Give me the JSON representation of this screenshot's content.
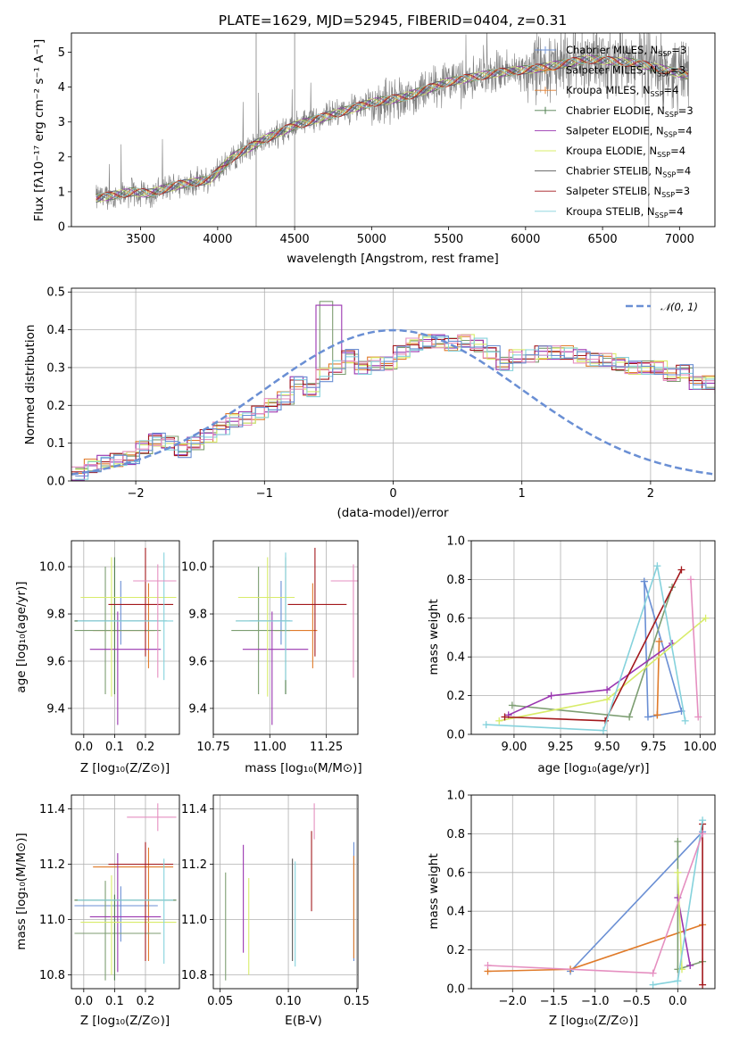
{
  "colors": [
    "#6a8fd4",
    "#e07b2a",
    "#4e7d4c",
    "#7d9e72",
    "#9a36b0",
    "#d8ec6a",
    "#5a5a5a",
    "#a3181c",
    "#85d2dc",
    "#e58fc0"
  ],
  "chart_data": [
    {
      "id": "spectrum",
      "type": "line",
      "title": "PLATE=1629, MJD=52945, FIBERID=0404, z=0.31",
      "xlabel": "wavelength [Angstrom, rest frame]",
      "ylabel": "Flux [fλ10⁻¹⁷ erg cm⁻² s⁻¹ A⁻¹]",
      "xlim": [
        3050,
        7230
      ],
      "ylim": [
        0,
        5.55
      ],
      "xticks": [
        3500,
        4000,
        4500,
        5000,
        5500,
        6000,
        6500,
        7000
      ],
      "yticks": [
        0,
        1,
        2,
        3,
        4,
        5
      ],
      "grid": false,
      "legend_position": "right",
      "continuum_nodes": [
        [
          3220,
          0.82
        ],
        [
          3450,
          1.0
        ],
        [
          3550,
          0.95
        ],
        [
          3750,
          1.2
        ],
        [
          3950,
          1.35
        ],
        [
          4100,
          2.0
        ],
        [
          4300,
          2.5
        ],
        [
          4500,
          2.9
        ],
        [
          4700,
          3.15
        ],
        [
          5000,
          3.55
        ],
        [
          5200,
          3.7
        ],
        [
          5500,
          4.15
        ],
        [
          5800,
          4.4
        ],
        [
          6100,
          4.55
        ],
        [
          6400,
          4.8
        ],
        [
          6700,
          4.7
        ],
        [
          7050,
          4.35
        ]
      ],
      "series_labels": [
        "Chabrier MILES, N",
        "Salpeter MILES, N",
        "Kroupa MILES, N",
        "Chabrier ELODIE, N",
        "Salpeter ELODIE, N",
        "Kroupa ELODIE, N",
        "Chabrier STELIB, N",
        "Salpeter STELIB, N",
        "Kroupa STELIB, N"
      ],
      "series_sub": "SSP",
      "series_nssp": [
        "=3",
        "=3",
        "=4",
        "=3",
        "=4",
        "=4",
        "=4",
        "=3",
        "=4"
      ],
      "series_color_index": [
        0,
        1,
        1,
        2,
        4,
        5,
        6,
        7,
        8
      ],
      "series_marker": [
        "|",
        "|",
        "|",
        "+",
        "",
        "",
        "",
        "",
        ""
      ]
    },
    {
      "id": "residual-hist",
      "type": "histogram",
      "xlabel": "(data-model)/error",
      "ylabel": "Normed distribution",
      "xlim": [
        -2.5,
        2.5
      ],
      "ylim": [
        0,
        0.51
      ],
      "xticks": [
        -2,
        -1,
        0,
        1,
        2
      ],
      "yticks": [
        0.0,
        0.1,
        0.2,
        0.3,
        0.4,
        0.5
      ],
      "grid": true,
      "legend_label": "𝒩(0, 1)",
      "legend_position": "top-right",
      "bin_width": 0.1,
      "base_profile": [
        0.02,
        0.04,
        0.05,
        0.055,
        0.06,
        0.09,
        0.11,
        0.1,
        0.08,
        0.1,
        0.12,
        0.14,
        0.16,
        0.165,
        0.18,
        0.2,
        0.22,
        0.26,
        0.24,
        0.28,
        0.3,
        0.33,
        0.3,
        0.31,
        0.31,
        0.34,
        0.36,
        0.37,
        0.37,
        0.36,
        0.37,
        0.36,
        0.34,
        0.31,
        0.33,
        0.33,
        0.34,
        0.34,
        0.34,
        0.33,
        0.32,
        0.32,
        0.31,
        0.3,
        0.3,
        0.3,
        0.28,
        0.29,
        0.26,
        0.26,
        0.25,
        0.23,
        0.2,
        0.2,
        0.19,
        0.17,
        0.17,
        0.155,
        0.15,
        0.14,
        0.13,
        0.12,
        0.11,
        0.09,
        0.08,
        0.07,
        0.06,
        0.05,
        0.045,
        0.04,
        0.035,
        0.04,
        0.03,
        0.035
      ],
      "spike": {
        "x": -0.55,
        "value": 0.485
      }
    },
    {
      "id": "age-vs-Z",
      "type": "errorbar",
      "xlabel": "Z [log₁₀(Z/Z⊙)]",
      "ylabel": "age  [log₁₀(age/yr)]",
      "xlim": [
        -0.04,
        0.31
      ],
      "ylim": [
        9.29,
        10.11
      ],
      "xticks": [
        0.0,
        0.1,
        0.2
      ],
      "yticks": [
        9.4,
        9.6,
        9.8,
        10.0
      ],
      "grid": true,
      "points": [
        {
          "x": 0.12,
          "y": 9.77,
          "xerr": [
            0.15,
            0.12
          ],
          "yerr": [
            0.1,
            0.17
          ],
          "color": 0
        },
        {
          "x": 0.21,
          "y": 9.73,
          "xerr": [
            0.18,
            0.02
          ],
          "yerr": [
            0.16,
            0.2
          ],
          "color": 1
        },
        {
          "x": 0.07,
          "y": 9.73,
          "xerr": [
            0.1,
            0.18
          ],
          "yerr": [
            0.27,
            0.27
          ],
          "color": 3
        },
        {
          "x": 0.1,
          "y": 9.77,
          "xerr": [
            0.13,
            0.17
          ],
          "yerr": [
            0.31,
            0.27
          ],
          "color": 2
        },
        {
          "x": 0.11,
          "y": 9.65,
          "xerr": [
            0.09,
            0.14
          ],
          "yerr": [
            0.32,
            0.16
          ],
          "color": 4
        },
        {
          "x": 0.09,
          "y": 9.87,
          "xerr": [
            0.1,
            0.21
          ],
          "yerr": [
            0.42,
            0.17
          ],
          "color": 5
        },
        {
          "x": 0.2,
          "y": 9.84,
          "xerr": [
            0.12,
            0.09
          ],
          "yerr": [
            0.22,
            0.24
          ],
          "color": 7
        },
        {
          "x": 0.26,
          "y": 9.77,
          "xerr": [
            0.28,
            0.03
          ],
          "yerr": [
            0.25,
            0.29
          ],
          "color": 8
        },
        {
          "x": 0.24,
          "y": 9.94,
          "xerr": [
            0.08,
            0.06
          ],
          "yerr": [
            0.41,
            0.07
          ],
          "color": 9
        }
      ]
    },
    {
      "id": "age-vs-mass",
      "type": "errorbar",
      "xlabel": "mass [log₁₀(M/M⊙)]",
      "ylabel": "",
      "xlim": [
        10.75,
        11.39
      ],
      "ylim": [
        9.29,
        10.11
      ],
      "xticks": [
        10.75,
        11.0,
        11.25
      ],
      "yticks": [
        9.4,
        9.6,
        9.8,
        10.0
      ],
      "grid": true,
      "points": [
        {
          "x": 11.05,
          "y": 9.77,
          "xerr": [
            0.14,
            0.05
          ],
          "yerr": [
            0.1,
            0.17
          ],
          "color": 0
        },
        {
          "x": 11.19,
          "y": 9.73,
          "xerr": [
            0.17,
            0.02
          ],
          "yerr": [
            0.16,
            0.2
          ],
          "color": 1
        },
        {
          "x": 10.95,
          "y": 9.73,
          "xerr": [
            0.12,
            0.14
          ],
          "yerr": [
            0.27,
            0.27
          ],
          "color": 3
        },
        {
          "x": 11.07,
          "y": 9.77,
          "xerr": [
            0.22,
            0.02
          ],
          "yerr": [
            0.31,
            0.27
          ],
          "color": 2
        },
        {
          "x": 11.01,
          "y": 9.65,
          "xerr": [
            0.13,
            0.16
          ],
          "yerr": [
            0.32,
            0.16
          ],
          "color": 4
        },
        {
          "x": 10.99,
          "y": 9.87,
          "xerr": [
            0.13,
            0.12
          ],
          "yerr": [
            0.42,
            0.17
          ],
          "color": 5
        },
        {
          "x": 11.2,
          "y": 9.84,
          "xerr": [
            0.12,
            0.14
          ],
          "yerr": [
            0.22,
            0.24
          ],
          "color": 7
        },
        {
          "x": 11.07,
          "y": 9.77,
          "xerr": [
            0.22,
            0.03
          ],
          "yerr": [
            0.25,
            0.29
          ],
          "color": 8
        },
        {
          "x": 11.37,
          "y": 9.94,
          "xerr": [
            0.1,
            0.06
          ],
          "yerr": [
            0.41,
            0.07
          ],
          "color": 9
        }
      ]
    },
    {
      "id": "mass-weight-vs-age",
      "type": "line",
      "xlabel": "age  [log₁₀(age/yr)]",
      "ylabel": "mass weight",
      "xlim": [
        8.77,
        10.08
      ],
      "ylim": [
        0,
        1.0
      ],
      "xticks": [
        9.0,
        9.25,
        9.5,
        9.75,
        10.0
      ],
      "yticks": [
        0.0,
        0.2,
        0.4,
        0.6,
        0.8,
        1.0
      ],
      "grid": true,
      "series": [
        {
          "color": 0,
          "points": [
            [
              9.7,
              0.79
            ],
            [
              9.72,
              0.09
            ],
            [
              9.9,
              0.12
            ],
            [
              9.7,
              0.79
            ]
          ]
        },
        {
          "color": 1,
          "points": [
            [
              9.77,
              0.1
            ],
            [
              9.78,
              0.48
            ],
            [
              9.77,
              0.1
            ]
          ]
        },
        {
          "color": 3,
          "points": [
            [
              8.99,
              0.15
            ],
            [
              9.62,
              0.09
            ],
            [
              9.85,
              0.76
            ]
          ]
        },
        {
          "color": 4,
          "points": [
            [
              8.97,
              0.1
            ],
            [
              9.2,
              0.2
            ],
            [
              9.5,
              0.23
            ],
            [
              9.85,
              0.47
            ]
          ]
        },
        {
          "color": 5,
          "points": [
            [
              8.92,
              0.07
            ],
            [
              9.5,
              0.18
            ],
            [
              10.03,
              0.6
            ]
          ]
        },
        {
          "color": 7,
          "points": [
            [
              8.95,
              0.09
            ],
            [
              9.49,
              0.07
            ],
            [
              9.9,
              0.85
            ]
          ]
        },
        {
          "color": 8,
          "points": [
            [
              8.85,
              0.05
            ],
            [
              9.48,
              0.02
            ],
            [
              9.77,
              0.87
            ],
            [
              9.92,
              0.07
            ]
          ]
        },
        {
          "color": 9,
          "points": [
            [
              9.95,
              0.8
            ],
            [
              9.99,
              0.09
            ]
          ]
        }
      ]
    },
    {
      "id": "mass-vs-Z",
      "type": "errorbar",
      "xlabel": "Z [log₁₀(Z/Z⊙)]",
      "ylabel": "mass [log₁₀(M/M⊙)]",
      "xlim": [
        -0.04,
        0.31
      ],
      "ylim": [
        10.75,
        11.45
      ],
      "xticks": [
        0.0,
        0.1,
        0.2
      ],
      "yticks": [
        10.8,
        11.0,
        11.2,
        11.4
      ],
      "grid": true,
      "points": [
        {
          "x": 0.12,
          "y": 11.05,
          "xerr": [
            0.15,
            0.12
          ],
          "yerr": [
            0.13,
            0.07
          ],
          "color": 0
        },
        {
          "x": 0.21,
          "y": 11.19,
          "xerr": [
            0.18,
            0.08
          ],
          "yerr": [
            0.34,
            0.07
          ],
          "color": 1
        },
        {
          "x": 0.07,
          "y": 10.95,
          "xerr": [
            0.1,
            0.18
          ],
          "yerr": [
            0.17,
            0.19
          ],
          "color": 3
        },
        {
          "x": 0.1,
          "y": 11.07,
          "xerr": [
            0.13,
            0.2
          ],
          "yerr": [
            0.29,
            0.02
          ],
          "color": 2
        },
        {
          "x": 0.11,
          "y": 11.01,
          "xerr": [
            0.09,
            0.14
          ],
          "yerr": [
            0.2,
            0.23
          ],
          "color": 4
        },
        {
          "x": 0.09,
          "y": 10.99,
          "xerr": [
            0.1,
            0.21
          ],
          "yerr": [
            0.19,
            0.17
          ],
          "color": 5
        },
        {
          "x": 0.2,
          "y": 11.2,
          "xerr": [
            0.12,
            0.09
          ],
          "yerr": [
            0.35,
            0.08
          ],
          "color": 7
        },
        {
          "x": 0.26,
          "y": 11.07,
          "xerr": [
            0.28,
            0.03
          ],
          "yerr": [
            0.23,
            0.15
          ],
          "color": 8
        },
        {
          "x": 0.24,
          "y": 11.37,
          "xerr": [
            0.1,
            0.06
          ],
          "yerr": [
            0.05,
            0.05
          ],
          "color": 9
        }
      ]
    },
    {
      "id": "mass-vs-ebv",
      "type": "errorbar",
      "xlabel": "E(B-V)",
      "ylabel": "",
      "xlim": [
        0.045,
        0.151
      ],
      "ylim": [
        10.75,
        11.45
      ],
      "xticks": [
        0.05,
        0.1,
        0.15
      ],
      "yticks": [
        10.8,
        11.0,
        11.2,
        11.4
      ],
      "grid": true,
      "points": [
        {
          "x": 0.148,
          "y": 11.05,
          "xerr": [
            0.0,
            0.0
          ],
          "yerr": [
            0.2,
            0.23
          ],
          "color": 0
        },
        {
          "x": 0.148,
          "y": 11.0,
          "xerr": [
            0.0,
            0.0
          ],
          "yerr": [
            0.14,
            0.23
          ],
          "color": 1
        },
        {
          "x": 0.054,
          "y": 10.95,
          "xerr": [
            0.0,
            0.0
          ],
          "yerr": [
            0.17,
            0.22
          ],
          "color": 3
        },
        {
          "x": 0.067,
          "y": 11.05,
          "xerr": [
            0.0,
            0.0
          ],
          "yerr": [
            0.17,
            0.22
          ],
          "color": 4
        },
        {
          "x": 0.071,
          "y": 10.97,
          "xerr": [
            0.0,
            0.0
          ],
          "yerr": [
            0.17,
            0.18
          ],
          "color": 5
        },
        {
          "x": 0.103,
          "y": 11.03,
          "xerr": [
            0.0,
            0.0
          ],
          "yerr": [
            0.18,
            0.19
          ],
          "color": 6
        },
        {
          "x": 0.117,
          "y": 11.2,
          "xerr": [
            0.0,
            0.0
          ],
          "yerr": [
            0.17,
            0.12
          ],
          "color": 7
        },
        {
          "x": 0.105,
          "y": 11.07,
          "xerr": [
            0.0,
            0.0
          ],
          "yerr": [
            0.24,
            0.14
          ],
          "color": 8
        },
        {
          "x": 0.119,
          "y": 11.37,
          "xerr": [
            0.0,
            0.0
          ],
          "yerr": [
            0.08,
            0.05
          ],
          "color": 9
        }
      ]
    },
    {
      "id": "mass-weight-vs-Z",
      "type": "line",
      "xlabel": "Z [log₁₀(Z/Z⊙)]",
      "ylabel": "mass weight",
      "xlim": [
        -2.5,
        0.45
      ],
      "ylim": [
        0,
        1.0
      ],
      "xticks": [
        -2.0,
        -1.5,
        -1.0,
        -0.5,
        0.0
      ],
      "yticks": [
        0.0,
        0.2,
        0.4,
        0.6,
        0.8,
        1.0
      ],
      "grid": true,
      "series": [
        {
          "color": 0,
          "points": [
            [
              -1.3,
              0.09
            ],
            [
              0.3,
              0.81
            ]
          ]
        },
        {
          "color": 1,
          "points": [
            [
              -2.3,
              0.09
            ],
            [
              -1.3,
              0.1
            ],
            [
              0.3,
              0.33
            ]
          ]
        },
        {
          "color": 3,
          "points": [
            [
              0.0,
              0.76
            ],
            [
              0.0,
              0.1
            ],
            [
              0.3,
              0.14
            ]
          ]
        },
        {
          "color": 4,
          "points": [
            [
              0.0,
              0.47
            ],
            [
              0.15,
              0.12
            ]
          ]
        },
        {
          "color": 5,
          "points": [
            [
              0.0,
              0.6
            ],
            [
              0.05,
              0.1
            ]
          ]
        },
        {
          "color": 7,
          "points": [
            [
              0.3,
              0.85
            ],
            [
              0.3,
              0.02
            ]
          ]
        },
        {
          "color": 8,
          "points": [
            [
              0.3,
              0.87
            ],
            [
              0.0,
              0.04
            ],
            [
              -0.3,
              0.02
            ]
          ]
        },
        {
          "color": 9,
          "points": [
            [
              -2.3,
              0.12
            ],
            [
              -0.3,
              0.08
            ],
            [
              0.3,
              0.8
            ]
          ]
        }
      ]
    }
  ]
}
